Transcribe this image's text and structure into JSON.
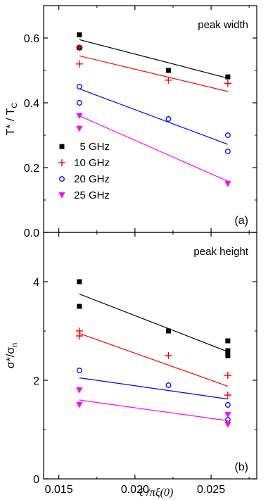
{
  "chart_data": [
    {
      "type": "scatter",
      "panel_label": "(a)",
      "annotation": "peak width",
      "ylabel": {
        "main": "T* / T",
        "sub": "C"
      },
      "xlim": [
        0.014,
        0.028
      ],
      "ylim": [
        0.0,
        0.7
      ],
      "yticks": [
        0.0,
        0.2,
        0.4,
        0.6
      ],
      "ytick_labels": [
        "0.0",
        "0.2",
        "0.4",
        "0.6"
      ],
      "legend_placement": "lower-left",
      "series": [
        {
          "name": "5 GHz",
          "color": "#000000",
          "marker": "square",
          "points": [
            [
              0.01635,
              0.61
            ],
            [
              0.01635,
              0.57
            ],
            [
              0.0222,
              0.5
            ],
            [
              0.0261,
              0.48
            ]
          ],
          "fit": [
            [
              0.01635,
              0.595
            ],
            [
              0.0261,
              0.476
            ]
          ]
        },
        {
          "name": "10 GHz",
          "color": "#ff0000",
          "marker": "plus",
          "points": [
            [
              0.01635,
              0.57
            ],
            [
              0.01635,
              0.52
            ],
            [
              0.0222,
              0.47
            ],
            [
              0.0261,
              0.46
            ]
          ],
          "fit": [
            [
              0.01635,
              0.545
            ],
            [
              0.0261,
              0.435
            ]
          ]
        },
        {
          "name": "20 GHz",
          "color": "#0000ff",
          "marker": "circle",
          "points": [
            [
              0.01635,
              0.45
            ],
            [
              0.01635,
              0.4
            ],
            [
              0.0222,
              0.35
            ],
            [
              0.0261,
              0.3
            ],
            [
              0.0261,
              0.25
            ]
          ],
          "fit": [
            [
              0.01635,
              0.443
            ],
            [
              0.0261,
              0.272
            ]
          ]
        },
        {
          "name": "25 GHz",
          "color": "#ff00ff",
          "marker": "triangle-down",
          "points": [
            [
              0.01635,
              0.36
            ],
            [
              0.01635,
              0.32
            ],
            [
              0.0261,
              0.15
            ]
          ],
          "fit": [
            [
              0.01635,
              0.36
            ],
            [
              0.0261,
              0.158
            ]
          ]
        }
      ]
    },
    {
      "type": "scatter",
      "panel_label": "(b)",
      "annotation": "peak height",
      "ylabel": {
        "main": "σ*/σ",
        "sub": "n"
      },
      "xlabel": "ℓ /πξ(0)",
      "xlim": [
        0.014,
        0.028
      ],
      "ylim": [
        0,
        5
      ],
      "yticks": [
        0,
        2,
        4
      ],
      "ytick_labels": [
        "0",
        "2",
        "4"
      ],
      "xticks": [
        0.015,
        0.02,
        0.025
      ],
      "xtick_labels": [
        "0.015",
        "0.020",
        "0.025"
      ],
      "series": [
        {
          "color": "#000000",
          "marker": "square",
          "points": [
            [
              0.01635,
              4.0
            ],
            [
              0.01635,
              3.5
            ],
            [
              0.0222,
              3.0
            ],
            [
              0.0261,
              2.8
            ],
            [
              0.0261,
              2.6
            ],
            [
              0.0261,
              2.5
            ]
          ],
          "fit": [
            [
              0.01635,
              3.75
            ],
            [
              0.0261,
              2.58
            ]
          ]
        },
        {
          "color": "#ff0000",
          "marker": "plus",
          "points": [
            [
              0.01635,
              3.0
            ],
            [
              0.01635,
              2.9
            ],
            [
              0.0222,
              2.5
            ],
            [
              0.0261,
              2.1
            ],
            [
              0.0261,
              1.7
            ]
          ],
          "fit": [
            [
              0.01635,
              2.95
            ],
            [
              0.0261,
              1.88
            ]
          ]
        },
        {
          "color": "#0000ff",
          "marker": "circle",
          "points": [
            [
              0.01635,
              2.2
            ],
            [
              0.0222,
              1.9
            ],
            [
              0.0261,
              1.5
            ],
            [
              0.0261,
              1.2
            ]
          ],
          "fit": [
            [
              0.01635,
              2.05
            ],
            [
              0.0261,
              1.62
            ]
          ]
        },
        {
          "color": "#ff00ff",
          "marker": "triangle-down",
          "points": [
            [
              0.01635,
              1.8
            ],
            [
              0.01635,
              1.5
            ],
            [
              0.0261,
              1.3
            ],
            [
              0.0261,
              1.1
            ]
          ],
          "fit": [
            [
              0.01635,
              1.6
            ],
            [
              0.0261,
              1.18
            ]
          ]
        }
      ]
    }
  ]
}
